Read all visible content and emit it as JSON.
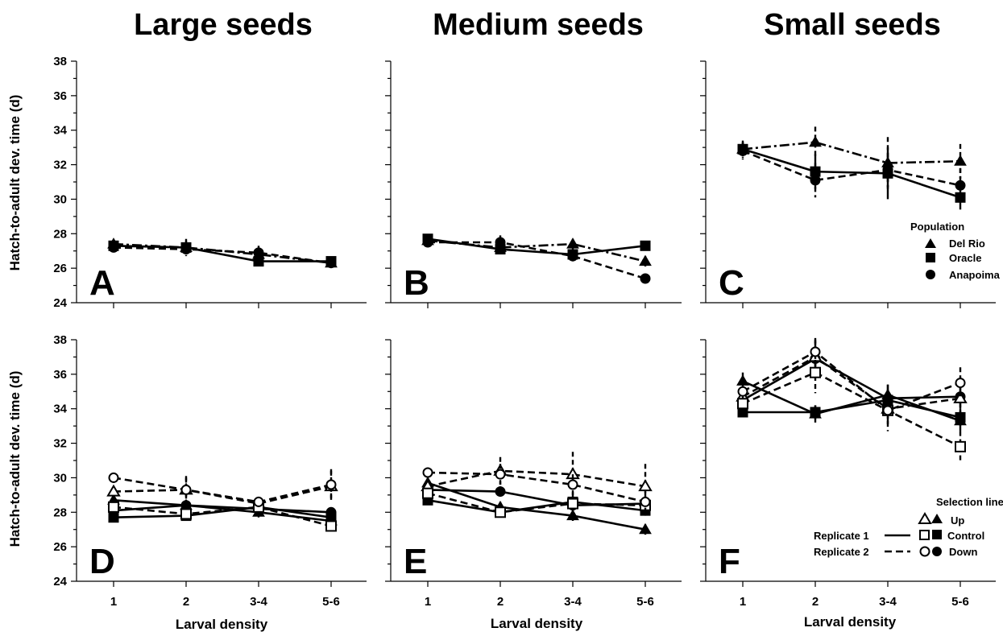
{
  "figure": {
    "column_titles": [
      "Large seeds",
      "Medium seeds",
      "Small seeds"
    ],
    "ylabel": "Hatch-to-adult dev. time (d)",
    "xlabel": "Larval density"
  },
  "legend_population": {
    "title": "Population",
    "entries": [
      {
        "label": "Del Rio",
        "marker": "triangle",
        "dash": "dashdot"
      },
      {
        "label": "Oracle",
        "marker": "square",
        "dash": "solid"
      },
      {
        "label": "Anapoima",
        "marker": "circle",
        "dash": "dashed"
      }
    ]
  },
  "legend_selection": {
    "title": "Selection line",
    "replicate1": "Replicate 1",
    "replicate2": "Replicate 2",
    "lines": [
      {
        "label": "Up",
        "marker": "triangle"
      },
      {
        "label": "Control",
        "marker": "square"
      },
      {
        "label": "Down",
        "marker": "circle"
      }
    ]
  },
  "chart_data": [
    {
      "panel": "A",
      "type": "line",
      "ylim": [
        24,
        38
      ],
      "yticks": [
        24,
        26,
        28,
        30,
        32,
        34,
        36,
        38
      ],
      "categories": [
        "1",
        "2",
        "3-4",
        "5-6"
      ],
      "series": [
        {
          "name": "Del Rio",
          "marker": "triangle",
          "fill": "filled",
          "dash": "dashdot",
          "values": [
            27.4,
            27.2,
            26.8,
            26.3
          ],
          "err": [
            0.2,
            0.5,
            0.5,
            0.2
          ]
        },
        {
          "name": "Oracle",
          "marker": "square",
          "fill": "filled",
          "dash": "solid",
          "values": [
            27.3,
            27.2,
            26.4,
            26.4
          ],
          "err": [
            0.2,
            0.4,
            0.3,
            0.2
          ]
        },
        {
          "name": "Anapoima",
          "marker": "circle",
          "fill": "filled",
          "dash": "dashed",
          "values": [
            27.2,
            27.1,
            26.9,
            26.3
          ],
          "err": [
            0.2,
            0.3,
            0.3,
            0.2
          ]
        }
      ]
    },
    {
      "panel": "B",
      "type": "line",
      "ylim": [
        24,
        38
      ],
      "yticks": [
        24,
        26,
        28,
        30,
        32,
        34,
        36,
        38
      ],
      "categories": [
        "1",
        "2",
        "3-4",
        "5-6"
      ],
      "series": [
        {
          "name": "Del Rio",
          "marker": "triangle",
          "fill": "filled",
          "dash": "dashdot",
          "values": [
            27.6,
            27.2,
            27.4,
            26.4
          ],
          "err": [
            0.2,
            0.4,
            0.3,
            0.3
          ]
        },
        {
          "name": "Oracle",
          "marker": "square",
          "fill": "filled",
          "dash": "solid",
          "values": [
            27.7,
            27.1,
            26.8,
            27.3
          ],
          "err": [
            0.2,
            0.3,
            0.3,
            0.2
          ]
        },
        {
          "name": "Anapoima",
          "marker": "circle",
          "fill": "filled",
          "dash": "dashed",
          "values": [
            27.5,
            27.5,
            26.7,
            25.4
          ],
          "err": [
            0.2,
            0.4,
            0.3,
            0.2
          ]
        }
      ]
    },
    {
      "panel": "C",
      "type": "line",
      "ylim": [
        24,
        38
      ],
      "yticks": [
        24,
        26,
        28,
        30,
        32,
        34,
        36,
        38
      ],
      "categories": [
        "1",
        "2",
        "3-4",
        "5-6"
      ],
      "series": [
        {
          "name": "Del Rio",
          "marker": "triangle",
          "fill": "filled",
          "dash": "dashdot",
          "values": [
            32.9,
            33.3,
            32.1,
            32.2
          ],
          "err": [
            0.5,
            0.9,
            1.5,
            1.0
          ]
        },
        {
          "name": "Oracle",
          "marker": "square",
          "fill": "filled",
          "dash": "solid",
          "values": [
            32.9,
            31.6,
            31.5,
            30.1
          ],
          "err": [
            0.4,
            1.0,
            1.5,
            0.7
          ]
        },
        {
          "name": "Anapoima",
          "marker": "circle",
          "fill": "filled",
          "dash": "dashed",
          "values": [
            32.8,
            31.1,
            31.7,
            30.8
          ],
          "err": [
            0.5,
            1.0,
            1.0,
            1.0
          ]
        }
      ]
    },
    {
      "panel": "D",
      "type": "line",
      "ylim": [
        24,
        38
      ],
      "yticks": [
        24,
        26,
        28,
        30,
        32,
        34,
        36,
        38
      ],
      "categories": [
        "1",
        "2",
        "3-4",
        "5-6"
      ],
      "series": [
        {
          "name": "Up",
          "replicate": "Replicate 1",
          "marker": "triangle",
          "fill": "filled",
          "dash": "solid",
          "values": [
            28.7,
            28.4,
            28.0,
            27.5
          ],
          "err": [
            0.2,
            0.3,
            0.3,
            0.3
          ]
        },
        {
          "name": "Control",
          "replicate": "Replicate 1",
          "marker": "square",
          "fill": "filled",
          "dash": "solid",
          "values": [
            27.7,
            27.8,
            28.3,
            27.7
          ],
          "err": [
            0.2,
            0.2,
            0.2,
            0.2
          ]
        },
        {
          "name": "Down",
          "replicate": "Replicate 1",
          "marker": "circle",
          "fill": "filled",
          "dash": "solid",
          "values": [
            28.1,
            28.4,
            28.2,
            28.0
          ],
          "err": [
            0.2,
            0.2,
            0.2,
            0.2
          ]
        },
        {
          "name": "Up",
          "replicate": "Replicate 2",
          "marker": "triangle",
          "fill": "open",
          "dash": "dashed",
          "values": [
            29.2,
            29.3,
            28.5,
            29.5
          ],
          "err": [
            0.3,
            0.8,
            0.3,
            0.9
          ]
        },
        {
          "name": "Control",
          "replicate": "Replicate 2",
          "marker": "square",
          "fill": "open",
          "dash": "dashed",
          "values": [
            28.3,
            27.9,
            28.3,
            27.2
          ],
          "err": [
            0.2,
            0.2,
            0.2,
            0.3
          ]
        },
        {
          "name": "Down",
          "replicate": "Replicate 2",
          "marker": "circle",
          "fill": "open",
          "dash": "dashed",
          "values": [
            30.0,
            29.3,
            28.6,
            29.6
          ],
          "err": [
            0.3,
            0.7,
            0.3,
            0.9
          ]
        }
      ]
    },
    {
      "panel": "E",
      "type": "line",
      "ylim": [
        24,
        38
      ],
      "yticks": [
        24,
        26,
        28,
        30,
        32,
        34,
        36,
        38
      ],
      "categories": [
        "1",
        "2",
        "3-4",
        "5-6"
      ],
      "series": [
        {
          "name": "Up",
          "replicate": "Replicate 1",
          "marker": "triangle",
          "fill": "filled",
          "dash": "solid",
          "values": [
            29.7,
            28.3,
            27.8,
            27.0
          ],
          "err": [
            0.3,
            0.3,
            0.3,
            0.3
          ]
        },
        {
          "name": "Control",
          "replicate": "Replicate 1",
          "marker": "square",
          "fill": "filled",
          "dash": "solid",
          "values": [
            28.7,
            28.0,
            28.6,
            28.1
          ],
          "err": [
            0.2,
            0.2,
            0.3,
            0.3
          ]
        },
        {
          "name": "Down",
          "replicate": "Replicate 1",
          "marker": "circle",
          "fill": "filled",
          "dash": "solid",
          "values": [
            29.3,
            29.2,
            28.4,
            28.5
          ],
          "err": [
            0.3,
            0.3,
            0.3,
            0.3
          ]
        },
        {
          "name": "Up",
          "replicate": "Replicate 2",
          "marker": "triangle",
          "fill": "open",
          "dash": "dashed",
          "values": [
            29.5,
            30.4,
            30.2,
            29.5
          ],
          "err": [
            0.3,
            0.8,
            1.3,
            1.3
          ]
        },
        {
          "name": "Control",
          "replicate": "Replicate 2",
          "marker": "square",
          "fill": "open",
          "dash": "dashed",
          "values": [
            29.1,
            28.0,
            28.5,
            28.4
          ],
          "err": [
            0.3,
            0.3,
            0.3,
            0.3
          ]
        },
        {
          "name": "Down",
          "replicate": "Replicate 2",
          "marker": "circle",
          "fill": "open",
          "dash": "dashed",
          "values": [
            30.3,
            30.2,
            29.6,
            28.6
          ],
          "err": [
            0.3,
            0.6,
            0.6,
            0.6
          ]
        }
      ]
    },
    {
      "panel": "F",
      "type": "line",
      "ylim": [
        24,
        38
      ],
      "yticks": [
        24,
        26,
        28,
        30,
        32,
        34,
        36,
        38
      ],
      "categories": [
        "1",
        "2",
        "3-4",
        "5-6"
      ],
      "series": [
        {
          "name": "Up",
          "replicate": "Replicate 1",
          "marker": "triangle",
          "fill": "filled",
          "dash": "solid",
          "values": [
            35.6,
            33.7,
            34.8,
            33.3
          ],
          "err": [
            0.5,
            0.5,
            0.6,
            0.6
          ]
        },
        {
          "name": "Control",
          "replicate": "Replicate 1",
          "marker": "square",
          "fill": "filled",
          "dash": "solid",
          "values": [
            33.8,
            33.8,
            34.5,
            33.5
          ],
          "err": [
            0.3,
            0.4,
            0.5,
            0.5
          ]
        },
        {
          "name": "Down",
          "replicate": "Replicate 1",
          "marker": "circle",
          "fill": "filled",
          "dash": "solid",
          "values": [
            34.5,
            36.9,
            34.6,
            34.7
          ],
          "err": [
            0.4,
            1.0,
            0.8,
            0.7
          ]
        },
        {
          "name": "Up",
          "replicate": "Replicate 2",
          "marker": "triangle",
          "fill": "open",
          "dash": "dashed",
          "values": [
            34.7,
            37.0,
            34.0,
            34.6
          ],
          "err": [
            0.4,
            1.0,
            0.9,
            0.7
          ]
        },
        {
          "name": "Control",
          "replicate": "Replicate 2",
          "marker": "square",
          "fill": "open",
          "dash": "dashed",
          "values": [
            34.3,
            36.1,
            33.9,
            31.8
          ],
          "err": [
            0.4,
            1.2,
            0.8,
            0.9
          ]
        },
        {
          "name": "Down",
          "replicate": "Replicate 2",
          "marker": "circle",
          "fill": "open",
          "dash": "dashed",
          "values": [
            35.0,
            37.3,
            33.9,
            35.5
          ],
          "err": [
            0.3,
            0.8,
            1.2,
            0.9
          ]
        }
      ]
    }
  ]
}
